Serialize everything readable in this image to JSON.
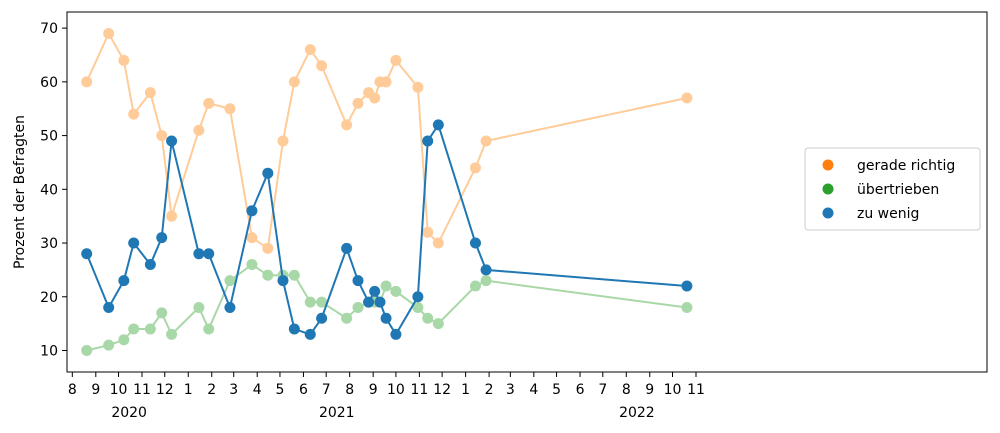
{
  "chart_data": {
    "type": "line",
    "title": "",
    "ylabel": "Prozent der Befragten",
    "xlabel": "",
    "ylim": [
      6,
      73
    ],
    "yticks": [
      10,
      20,
      30,
      40,
      50,
      60,
      70
    ],
    "xlim": [
      "2019-07-25",
      "2022-11-20"
    ],
    "month_ticks": [
      "2019-08-01",
      "2019-09-01",
      "2019-10-01",
      "2019-11-01",
      "2019-12-01",
      "2020-01-01",
      "2020-02-01",
      "2020-03-01",
      "2020-04-01",
      "2020-05-01",
      "2020-06-01",
      "2020-07-01",
      "2020-08-01",
      "2020-09-01",
      "2020-10-01",
      "2020-11-01",
      "2020-12-01",
      "2021-01-01",
      "2021-02-01",
      "2021-03-01",
      "2021-04-01",
      "2021-05-01",
      "2021-06-01",
      "2021-07-01",
      "2021-08-01",
      "2021-09-01",
      "2021-10-01",
      "2021-11-01"
    ],
    "month_labels": [
      "8",
      "9",
      "10",
      "11",
      "12",
      "1",
      "2",
      "3",
      "4",
      "5",
      "6",
      "7",
      "8",
      "9",
      "10",
      "11",
      "12",
      "1",
      "2",
      "3",
      "4",
      "5",
      "6",
      "7",
      "8",
      "9",
      "10",
      "11"
    ],
    "year_labels": [
      {
        "label": "2020",
        "date": "2019-10-15"
      },
      {
        "label": "2021",
        "date": "2020-07-15"
      },
      {
        "label": "2022",
        "date": "2021-08-15"
      }
    ],
    "legend": {
      "placement": "center-right",
      "entries": [
        {
          "name": "gerade richtig",
          "color": "#ff7f0e"
        },
        {
          "name": "übertrieben",
          "color": "#2ca02c"
        },
        {
          "name": "zu wenig",
          "color": "#1f77b4"
        }
      ]
    },
    "series": [
      {
        "name": "gerade richtig",
        "color": "#ffcc99",
        "points": [
          [
            "2019-08-20",
            60
          ],
          [
            "2019-09-18",
            69
          ],
          [
            "2019-10-08",
            64
          ],
          [
            "2019-10-21",
            54
          ],
          [
            "2019-11-12",
            58
          ],
          [
            "2019-11-27",
            50
          ],
          [
            "2019-12-10",
            35
          ],
          [
            "2020-01-15",
            51
          ],
          [
            "2020-01-28",
            56
          ],
          [
            "2020-02-25",
            55
          ],
          [
            "2020-03-25",
            31
          ],
          [
            "2020-04-15",
            29
          ],
          [
            "2020-05-05",
            49
          ],
          [
            "2020-05-20",
            60
          ],
          [
            "2020-06-10",
            66
          ],
          [
            "2020-06-25",
            63
          ],
          [
            "2020-07-28",
            52
          ],
          [
            "2020-08-12",
            56
          ],
          [
            "2020-08-26",
            58
          ],
          [
            "2020-09-03",
            57
          ],
          [
            "2020-09-10",
            60
          ],
          [
            "2020-09-18",
            60
          ],
          [
            "2020-10-01",
            64
          ],
          [
            "2020-10-30",
            59
          ],
          [
            "2020-11-12",
            32
          ],
          [
            "2020-11-26",
            30
          ],
          [
            "2021-01-14",
            44
          ],
          [
            "2021-01-28",
            49
          ],
          [
            "2021-10-20",
            57
          ]
        ]
      },
      {
        "name": "übertrieben",
        "color": "#a8d8a8",
        "points": [
          [
            "2019-08-20",
            10
          ],
          [
            "2019-09-18",
            11
          ],
          [
            "2019-10-08",
            12
          ],
          [
            "2019-10-21",
            14
          ],
          [
            "2019-11-12",
            14
          ],
          [
            "2019-11-27",
            17
          ],
          [
            "2019-12-10",
            13
          ],
          [
            "2020-01-15",
            18
          ],
          [
            "2020-01-28",
            14
          ],
          [
            "2020-02-25",
            23
          ],
          [
            "2020-03-25",
            26
          ],
          [
            "2020-04-15",
            24
          ],
          [
            "2020-05-05",
            24
          ],
          [
            "2020-05-20",
            24
          ],
          [
            "2020-06-10",
            19
          ],
          [
            "2020-06-25",
            19
          ],
          [
            "2020-07-28",
            16
          ],
          [
            "2020-08-12",
            18
          ],
          [
            "2020-08-26",
            19
          ],
          [
            "2020-09-03",
            19
          ],
          [
            "2020-09-10",
            19
          ],
          [
            "2020-09-18",
            22
          ],
          [
            "2020-10-01",
            21
          ],
          [
            "2020-10-30",
            18
          ],
          [
            "2020-11-12",
            16
          ],
          [
            "2020-11-26",
            15
          ],
          [
            "2021-01-14",
            22
          ],
          [
            "2021-01-28",
            23
          ],
          [
            "2021-10-20",
            18
          ]
        ]
      },
      {
        "name": "zu wenig",
        "color": "#1f77b4",
        "points": [
          [
            "2019-08-20",
            28
          ],
          [
            "2019-09-18",
            18
          ],
          [
            "2019-10-08",
            23
          ],
          [
            "2019-10-21",
            30
          ],
          [
            "2019-11-12",
            26
          ],
          [
            "2019-11-27",
            31
          ],
          [
            "2019-12-10",
            49
          ],
          [
            "2020-01-15",
            28
          ],
          [
            "2020-01-28",
            28
          ],
          [
            "2020-02-25",
            18
          ],
          [
            "2020-03-25",
            36
          ],
          [
            "2020-04-15",
            43
          ],
          [
            "2020-05-05",
            23
          ],
          [
            "2020-05-20",
            14
          ],
          [
            "2020-06-10",
            13
          ],
          [
            "2020-06-25",
            16
          ],
          [
            "2020-07-28",
            29
          ],
          [
            "2020-08-12",
            23
          ],
          [
            "2020-08-26",
            19
          ],
          [
            "2020-09-03",
            21
          ],
          [
            "2020-09-10",
            19
          ],
          [
            "2020-09-18",
            16
          ],
          [
            "2020-10-01",
            13
          ],
          [
            "2020-10-30",
            20
          ],
          [
            "2020-11-12",
            49
          ],
          [
            "2020-11-26",
            52
          ],
          [
            "2021-01-14",
            30
          ],
          [
            "2021-01-28",
            25
          ],
          [
            "2021-10-20",
            22
          ]
        ]
      }
    ]
  }
}
